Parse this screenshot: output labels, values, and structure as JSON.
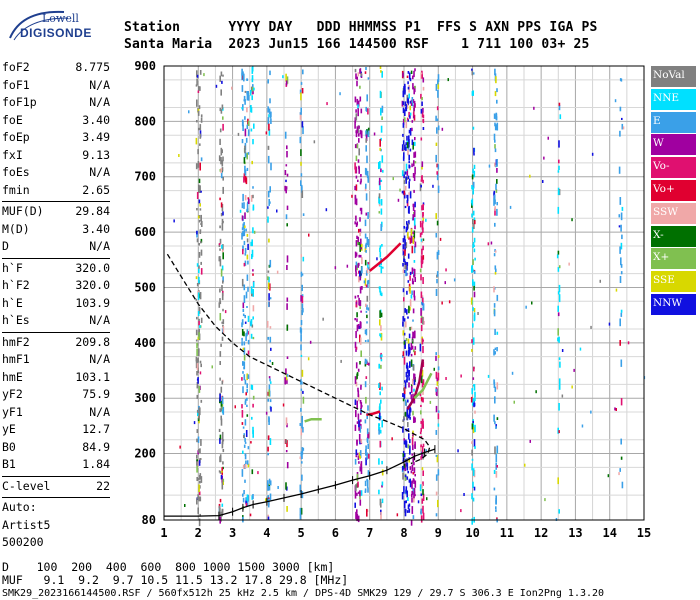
{
  "logo": {
    "line1": "Lowell",
    "line2": "DIGISONDE"
  },
  "header": {
    "line1": "Station      YYYY DAY   DDD HHMMSS P1  FFS S AXN PPS IGA PS",
    "line2": "Santa Maria  2023 Jun15 166 144500 RSF    1 711 100 03+ 25"
  },
  "params": [
    {
      "label": "foF2",
      "value": "8.775"
    },
    {
      "label": "foF1",
      "value": "N/A"
    },
    {
      "label": "foF1p",
      "value": "N/A"
    },
    {
      "label": "foE",
      "value": "3.40"
    },
    {
      "label": "foEp",
      "value": "3.49"
    },
    {
      "label": "fxI",
      "value": "9.13"
    },
    {
      "label": "foEs",
      "value": "N/A"
    },
    {
      "label": "fmin",
      "value": "2.65"
    },
    {
      "sep": true
    },
    {
      "label": "MUF(D)",
      "value": "29.84"
    },
    {
      "label": "M(D)",
      "value": "3.40"
    },
    {
      "label": "D",
      "value": "N/A"
    },
    {
      "sep": true
    },
    {
      "label": "h`F",
      "value": "320.0"
    },
    {
      "label": "h`F2",
      "value": "320.0"
    },
    {
      "label": "h`E",
      "value": "103.9"
    },
    {
      "label": "h`Es",
      "value": "N/A"
    },
    {
      "sep": true
    },
    {
      "label": "hmF2",
      "value": "209.8"
    },
    {
      "label": "hmF1",
      "value": "N/A"
    },
    {
      "label": "hmE",
      "value": "103.1"
    },
    {
      "label": "yF2",
      "value": "75.9"
    },
    {
      "label": "yF1",
      "value": "N/A"
    },
    {
      "label": "yE",
      "value": "12.7"
    },
    {
      "label": "B0",
      "value": "84.9"
    },
    {
      "label": "B1",
      "value": "1.84"
    },
    {
      "sep": true
    },
    {
      "label": "C-level",
      "value": "22"
    },
    {
      "sep": true
    },
    {
      "label": "Auto:",
      "value": ""
    },
    {
      "label": "Artist5",
      "value": ""
    },
    {
      "label": "500200",
      "value": ""
    }
  ],
  "legend": [
    {
      "label": "NoVal",
      "color": "#808080"
    },
    {
      "label": "NNE",
      "color": "#00e0ff"
    },
    {
      "label": "E",
      "color": "#3aa0e8"
    },
    {
      "label": "W",
      "color": "#a000a0"
    },
    {
      "label": "Vo-",
      "color": "#e01070"
    },
    {
      "label": "Vo+",
      "color": "#e00030"
    },
    {
      "label": "SSW",
      "color": "#f0a8a8"
    },
    {
      "label": "X-",
      "color": "#007000"
    },
    {
      "label": "X+",
      "color": "#80c050"
    },
    {
      "label": "SSE",
      "color": "#d8d800"
    },
    {
      "label": "NNW",
      "color": "#1010e0"
    }
  ],
  "chart_data": {
    "type": "scatter",
    "title": "",
    "xlabel": "",
    "ylabel": "",
    "xlim": [
      1,
      15
    ],
    "ylim": [
      80,
      900
    ],
    "x_ticks": [
      1,
      2,
      3,
      4,
      5,
      6,
      7,
      8,
      9,
      10,
      11,
      12,
      13,
      14,
      15
    ],
    "y_ticks": [
      80,
      200,
      300,
      400,
      500,
      600,
      700,
      800,
      900
    ],
    "grid": true,
    "series": [
      {
        "type": "line",
        "style": "solid",
        "color": "#000000",
        "points": [
          [
            1.0,
            87
          ],
          [
            1.5,
            87
          ],
          [
            2.0,
            87
          ],
          [
            2.6,
            88
          ],
          [
            3.0,
            95
          ],
          [
            3.3,
            102
          ],
          [
            3.6,
            108
          ],
          [
            4.0,
            113
          ],
          [
            4.5,
            120
          ],
          [
            5.0,
            127
          ],
          [
            5.5,
            135
          ],
          [
            6.0,
            143
          ],
          [
            6.5,
            152
          ],
          [
            7.0,
            160
          ],
          [
            7.5,
            170
          ],
          [
            8.0,
            185
          ],
          [
            8.3,
            195
          ],
          [
            8.6,
            202
          ],
          [
            8.9,
            208
          ]
        ]
      },
      {
        "type": "line",
        "style": "dashed",
        "color": "#000000",
        "points": [
          [
            1.1,
            560
          ],
          [
            1.5,
            520
          ],
          [
            2.0,
            470
          ],
          [
            2.5,
            430
          ],
          [
            3.0,
            400
          ],
          [
            3.5,
            375
          ],
          [
            4.0,
            360
          ],
          [
            4.5,
            345
          ],
          [
            5.0,
            330
          ],
          [
            5.5,
            315
          ],
          [
            6.0,
            300
          ],
          [
            6.5,
            285
          ],
          [
            7.0,
            270
          ],
          [
            7.5,
            258
          ],
          [
            8.0,
            245
          ],
          [
            8.3,
            235
          ],
          [
            8.6,
            225
          ],
          [
            8.75,
            212
          ],
          [
            8.7,
            200
          ],
          [
            8.5,
            190
          ],
          [
            8.2,
            182
          ]
        ]
      }
    ]
  },
  "bottom": {
    "line_d": "D    100  200  400  600  800 1000 1500 3000 [km]",
    "line_muf": "MUF   9.1  9.2  9.7 10.5 11.5 13.2 17.8 29.8 [MHz]",
    "footer": "SMK29_2023166144500.RSF / 560fx512h 25 kHz 2.5 km / DPS-4D SMK29 129 / 29.7 S 306.3 E Ion2Png 1.3.20"
  }
}
